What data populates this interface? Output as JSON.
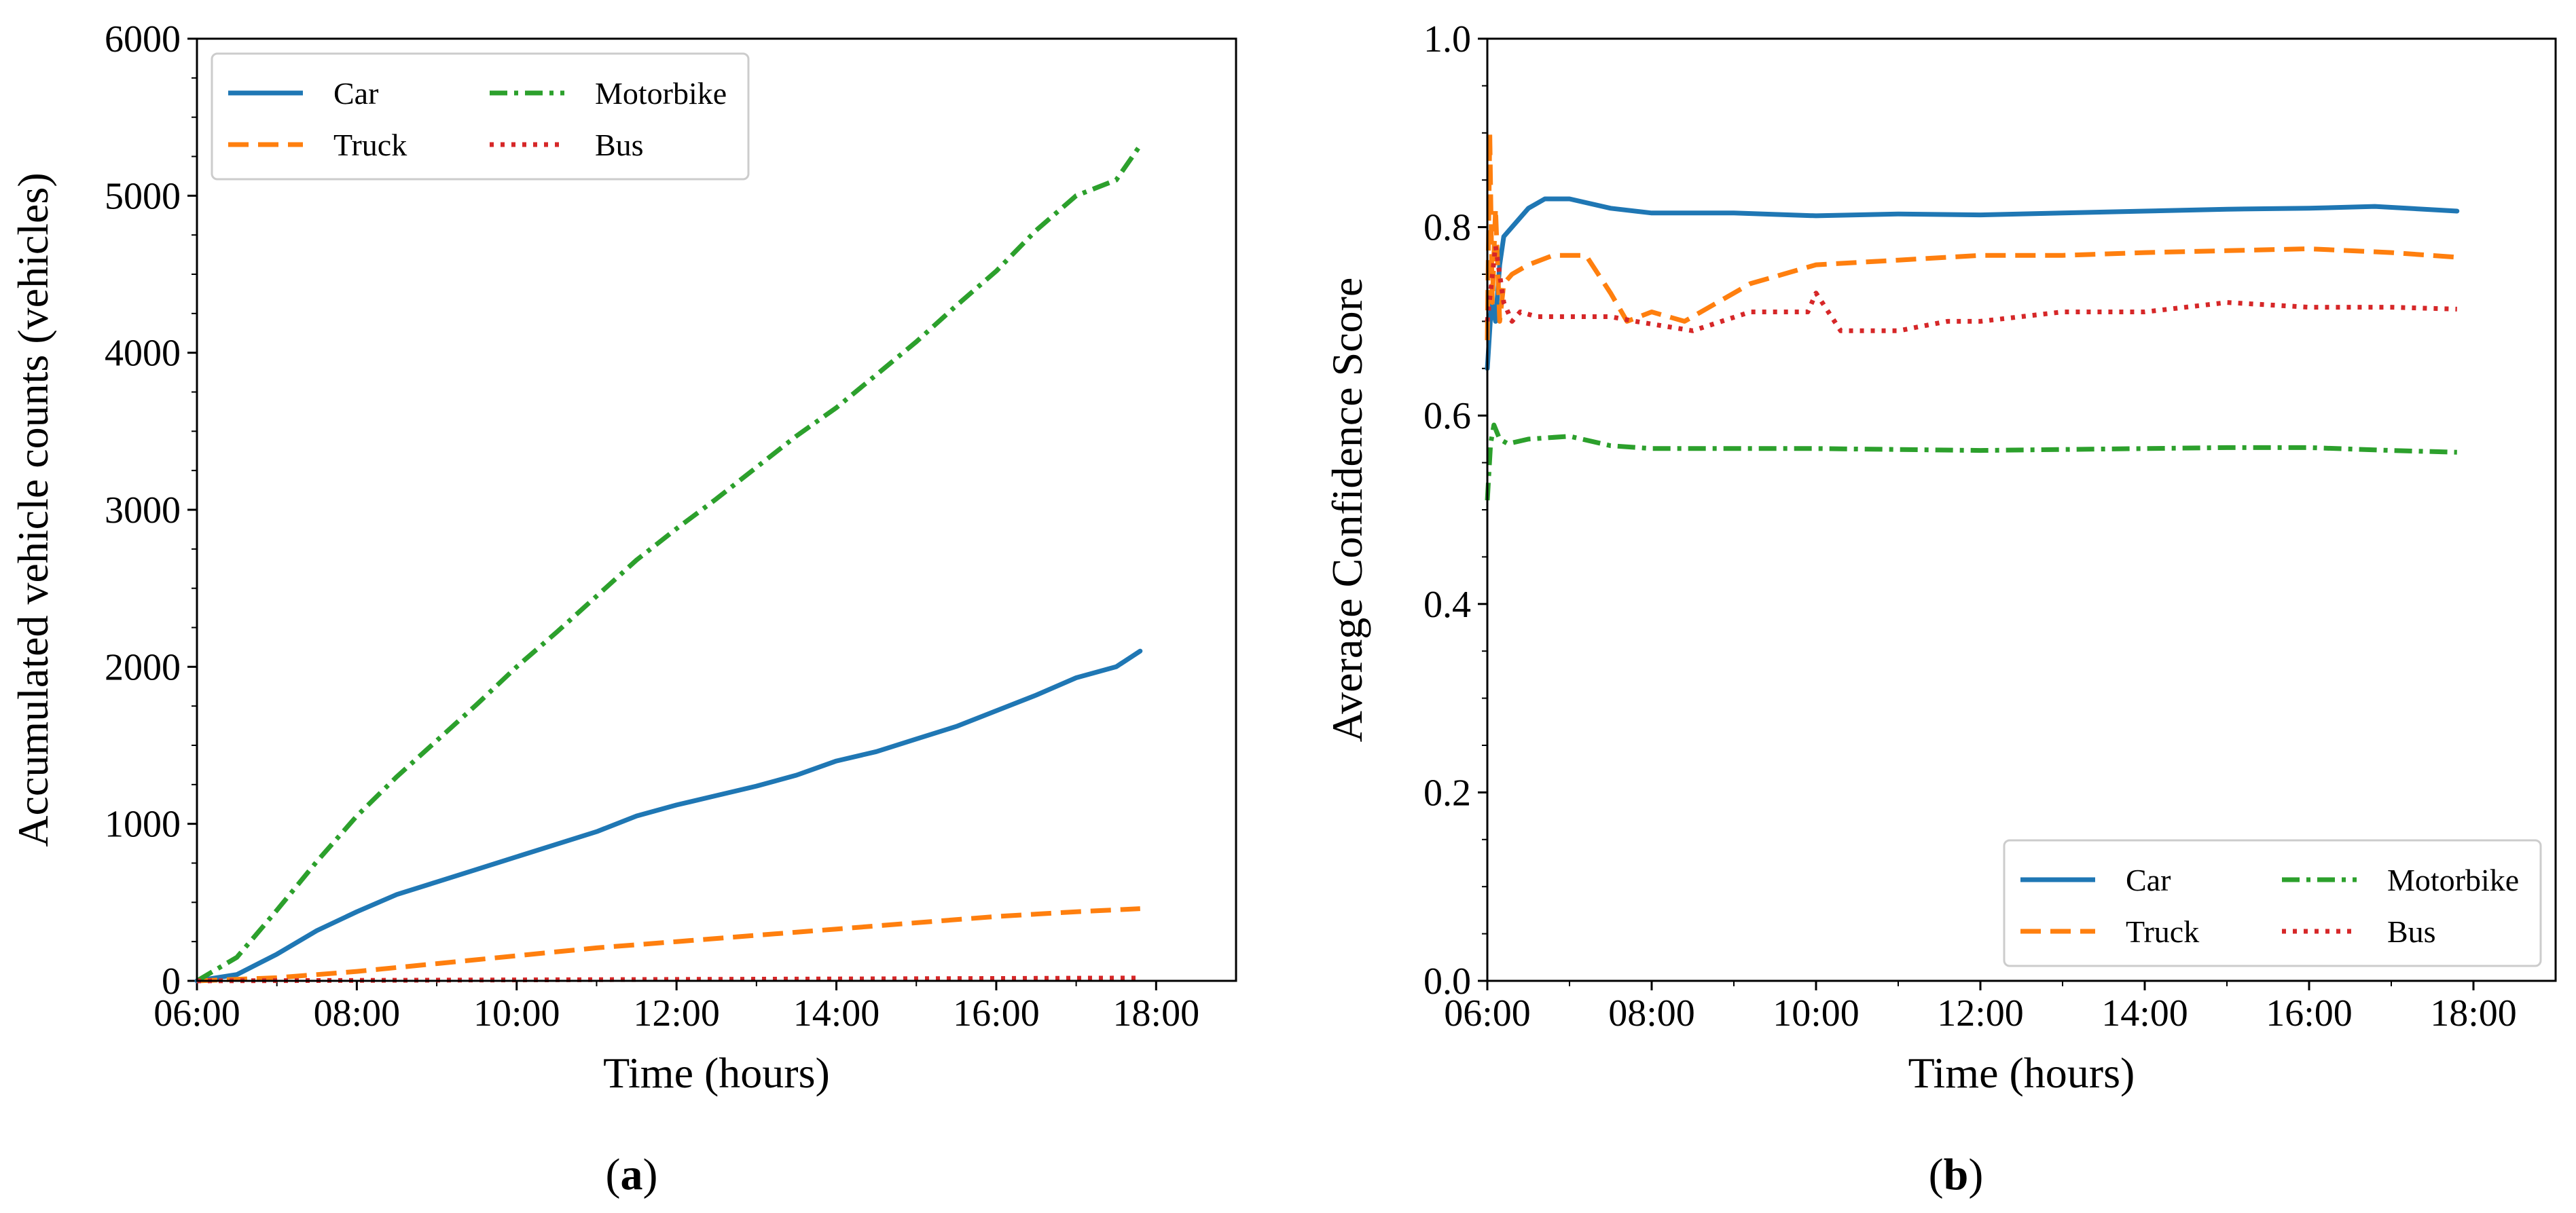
{
  "figure": {
    "panels": [
      {
        "label_open": "(",
        "label_letter": "a",
        "label_close": ")"
      },
      {
        "label_open": "(",
        "label_letter": "b",
        "label_close": ")"
      }
    ]
  },
  "colors": {
    "car": "#1f77b4",
    "truck": "#ff7f0e",
    "motorbike": "#2ca02c",
    "bus": "#d62728"
  },
  "chart_data": [
    {
      "type": "line",
      "panel": "a",
      "title": "",
      "xlabel": "Time (hours)",
      "ylabel": "Accumulated vehicle counts (vehicles)",
      "xlim": [
        6.0,
        19.0
      ],
      "ylim": [
        0,
        6000
      ],
      "xticks": [
        6,
        8,
        10,
        12,
        14,
        16,
        18
      ],
      "xtick_labels": [
        "06:00",
        "08:00",
        "10:00",
        "12:00",
        "14:00",
        "16:00",
        "18:00"
      ],
      "yticks": [
        0,
        1000,
        2000,
        3000,
        4000,
        5000,
        6000
      ],
      "ytick_labels": [
        "0",
        "1000",
        "2000",
        "3000",
        "4000",
        "5000",
        "6000"
      ],
      "legend": {
        "position": "upper-left",
        "columns": 2,
        "order": [
          "car",
          "motorbike",
          "truck",
          "bus"
        ]
      },
      "series": [
        {
          "key": "car",
          "name": "Car",
          "style": "solid",
          "color": "#1f77b4",
          "x": [
            6.0,
            6.5,
            7.0,
            7.5,
            8.0,
            8.5,
            9.0,
            9.5,
            10.0,
            10.5,
            11.0,
            11.5,
            12.0,
            12.5,
            13.0,
            13.5,
            14.0,
            14.5,
            15.0,
            15.5,
            16.0,
            16.5,
            17.0,
            17.5,
            17.8
          ],
          "y": [
            0,
            40,
            170,
            320,
            440,
            550,
            630,
            710,
            790,
            870,
            950,
            1050,
            1120,
            1180,
            1240,
            1310,
            1400,
            1460,
            1540,
            1620,
            1720,
            1820,
            1930,
            2000,
            2100
          ]
        },
        {
          "key": "truck",
          "name": "Truck",
          "style": "dashed",
          "color": "#ff7f0e",
          "x": [
            6.0,
            7.0,
            8.0,
            9.0,
            10.0,
            11.0,
            12.0,
            13.0,
            14.0,
            15.0,
            16.0,
            17.0,
            17.8
          ],
          "y": [
            0,
            20,
            60,
            110,
            160,
            210,
            250,
            290,
            330,
            370,
            410,
            440,
            460
          ]
        },
        {
          "key": "motorbike",
          "name": "Motorbike",
          "style": "dashdot",
          "color": "#2ca02c",
          "x": [
            6.0,
            6.5,
            7.0,
            7.5,
            8.0,
            8.5,
            9.0,
            9.5,
            10.0,
            10.5,
            11.0,
            11.5,
            12.0,
            12.5,
            13.0,
            13.5,
            14.0,
            14.5,
            15.0,
            15.5,
            16.0,
            16.5,
            17.0,
            17.5,
            17.8
          ],
          "y": [
            0,
            150,
            450,
            760,
            1050,
            1300,
            1530,
            1760,
            2000,
            2220,
            2450,
            2680,
            2880,
            3070,
            3270,
            3470,
            3650,
            3860,
            4070,
            4300,
            4520,
            4780,
            5000,
            5100,
            5320
          ]
        },
        {
          "key": "bus",
          "name": "Bus",
          "style": "dotted",
          "color": "#d62728",
          "x": [
            6.0,
            8.0,
            10.0,
            12.0,
            14.0,
            16.0,
            17.8
          ],
          "y": [
            0,
            3,
            6,
            9,
            12,
            15,
            18
          ]
        }
      ]
    },
    {
      "type": "line",
      "panel": "b",
      "title": "",
      "xlabel": "Time (hours)",
      "ylabel": "Average Confidence Score",
      "xlim": [
        6.0,
        19.0
      ],
      "ylim": [
        0.0,
        1.0
      ],
      "xticks": [
        6,
        8,
        10,
        12,
        14,
        16,
        18
      ],
      "xtick_labels": [
        "06:00",
        "08:00",
        "10:00",
        "12:00",
        "14:00",
        "16:00",
        "18:00"
      ],
      "yticks": [
        0.0,
        0.2,
        0.4,
        0.6,
        0.8,
        1.0
      ],
      "ytick_labels": [
        "0.0",
        "0.2",
        "0.4",
        "0.6",
        "0.8",
        "1.0"
      ],
      "legend": {
        "position": "lower-right",
        "columns": 2,
        "order": [
          "car",
          "motorbike",
          "truck",
          "bus"
        ]
      },
      "series": [
        {
          "key": "car",
          "name": "Car",
          "style": "solid",
          "color": "#1f77b4",
          "x": [
            6.0,
            6.05,
            6.1,
            6.15,
            6.2,
            6.3,
            6.4,
            6.5,
            6.7,
            7.0,
            7.5,
            8.0,
            9.0,
            10.0,
            11.0,
            12.0,
            13.0,
            14.0,
            15.0,
            16.0,
            16.8,
            17.8
          ],
          "y": [
            0.65,
            0.72,
            0.7,
            0.76,
            0.79,
            0.8,
            0.81,
            0.82,
            0.83,
            0.83,
            0.82,
            0.815,
            0.815,
            0.812,
            0.814,
            0.813,
            0.815,
            0.817,
            0.819,
            0.82,
            0.822,
            0.817
          ]
        },
        {
          "key": "truck",
          "name": "Truck",
          "style": "dashed",
          "color": "#ff7f0e",
          "x": [
            6.0,
            6.03,
            6.06,
            6.1,
            6.15,
            6.2,
            6.3,
            6.5,
            6.8,
            7.2,
            7.5,
            7.7,
            8.0,
            8.4,
            8.8,
            9.2,
            9.6,
            10.0,
            11.0,
            12.0,
            13.0,
            14.0,
            15.0,
            16.0,
            17.0,
            17.8
          ],
          "y": [
            0.68,
            0.9,
            0.72,
            0.82,
            0.7,
            0.74,
            0.75,
            0.76,
            0.77,
            0.77,
            0.73,
            0.7,
            0.71,
            0.7,
            0.72,
            0.74,
            0.75,
            0.76,
            0.765,
            0.77,
            0.77,
            0.773,
            0.775,
            0.777,
            0.773,
            0.768
          ]
        },
        {
          "key": "motorbike",
          "name": "Motorbike",
          "style": "dashdot",
          "color": "#2ca02c",
          "x": [
            6.0,
            6.04,
            6.08,
            6.15,
            6.25,
            6.5,
            7.0,
            7.5,
            8.0,
            9.0,
            10.0,
            11.0,
            12.0,
            13.0,
            14.0,
            15.0,
            16.0,
            17.0,
            17.8
          ],
          "y": [
            0.51,
            0.57,
            0.59,
            0.575,
            0.57,
            0.575,
            0.578,
            0.568,
            0.565,
            0.565,
            0.565,
            0.564,
            0.563,
            0.564,
            0.565,
            0.566,
            0.566,
            0.563,
            0.561
          ]
        },
        {
          "key": "bus",
          "name": "Bus",
          "style": "dotted",
          "color": "#d62728",
          "x": [
            6.0,
            6.1,
            6.2,
            6.3,
            6.4,
            6.6,
            7.5,
            7.8,
            8.5,
            9.2,
            9.9,
            10.0,
            10.3,
            11.0,
            11.6,
            12.0,
            13.0,
            14.0,
            15.0,
            16.0,
            17.0,
            17.8
          ],
          "y": [
            0.7,
            0.78,
            0.72,
            0.7,
            0.71,
            0.705,
            0.705,
            0.7,
            0.69,
            0.71,
            0.71,
            0.73,
            0.69,
            0.69,
            0.7,
            0.7,
            0.71,
            0.71,
            0.72,
            0.715,
            0.715,
            0.713
          ]
        }
      ]
    }
  ]
}
